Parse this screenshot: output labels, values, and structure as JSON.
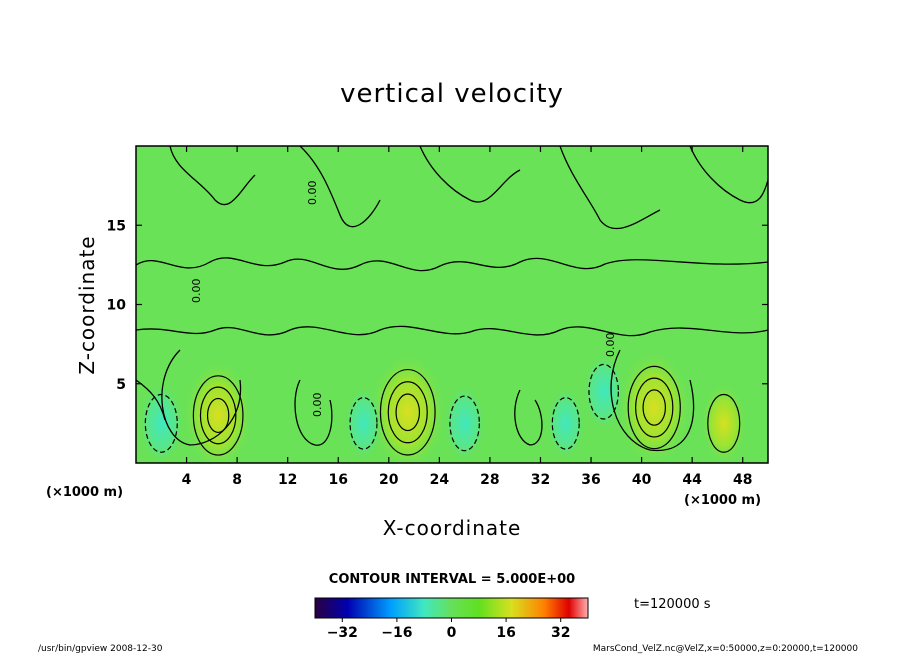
{
  "chart_data": {
    "type": "heatmap",
    "title": "vertical velocity",
    "xlabel": "X-coordinate",
    "ylabel": "Z-coordinate",
    "x_unit": "(×1000 m)",
    "y_unit": "(×1000 m)",
    "xlim": [
      0,
      50
    ],
    "ylim": [
      0,
      20
    ],
    "x_ticks": [
      "4",
      "8",
      "12",
      "16",
      "20",
      "24",
      "28",
      "32",
      "36",
      "40",
      "44",
      "48"
    ],
    "y_ticks": [
      "5",
      "10",
      "15"
    ],
    "contour_label": "0.00",
    "contour_interval_text": "CONTOUR INTERVAL = 5.000E+00",
    "time_text": "t=120000  s",
    "colorbar": {
      "range": [
        -40,
        40
      ],
      "tick_labels": [
        "−32",
        "−16",
        "0",
        "16",
        "32"
      ],
      "colors": [
        "#2a0040",
        "#0000b0",
        "#00a0ff",
        "#40e8c0",
        "#66e05a",
        "#60e020",
        "#d8e020",
        "#ff8000",
        "#e00000",
        "#ffb0b0"
      ]
    },
    "features": [
      {
        "x": 6.5,
        "z": 3,
        "w": 26,
        "sign": "+"
      },
      {
        "x": 21.5,
        "z": 3.2,
        "w": 30,
        "sign": "+"
      },
      {
        "x": 41,
        "z": 3.5,
        "w": 28,
        "sign": "+"
      },
      {
        "x": 46.5,
        "z": 2.5,
        "w": 12,
        "sign": "+"
      },
      {
        "x": 2,
        "z": 2.5,
        "w": -12,
        "sign": "-"
      },
      {
        "x": 18,
        "z": 2.5,
        "w": -8,
        "sign": "-"
      },
      {
        "x": 26,
        "z": 2.5,
        "w": -10,
        "sign": "-"
      },
      {
        "x": 34,
        "z": 2.5,
        "w": -8,
        "sign": "-"
      },
      {
        "x": 37,
        "z": 4.5,
        "w": -10,
        "sign": "-"
      }
    ],
    "footer_left": "/usr/bin/gpview   2008-12-30",
    "footer_right": "MarsCond_VelZ.nc@VelZ,x=0:50000,z=0:20000,t=120000"
  }
}
